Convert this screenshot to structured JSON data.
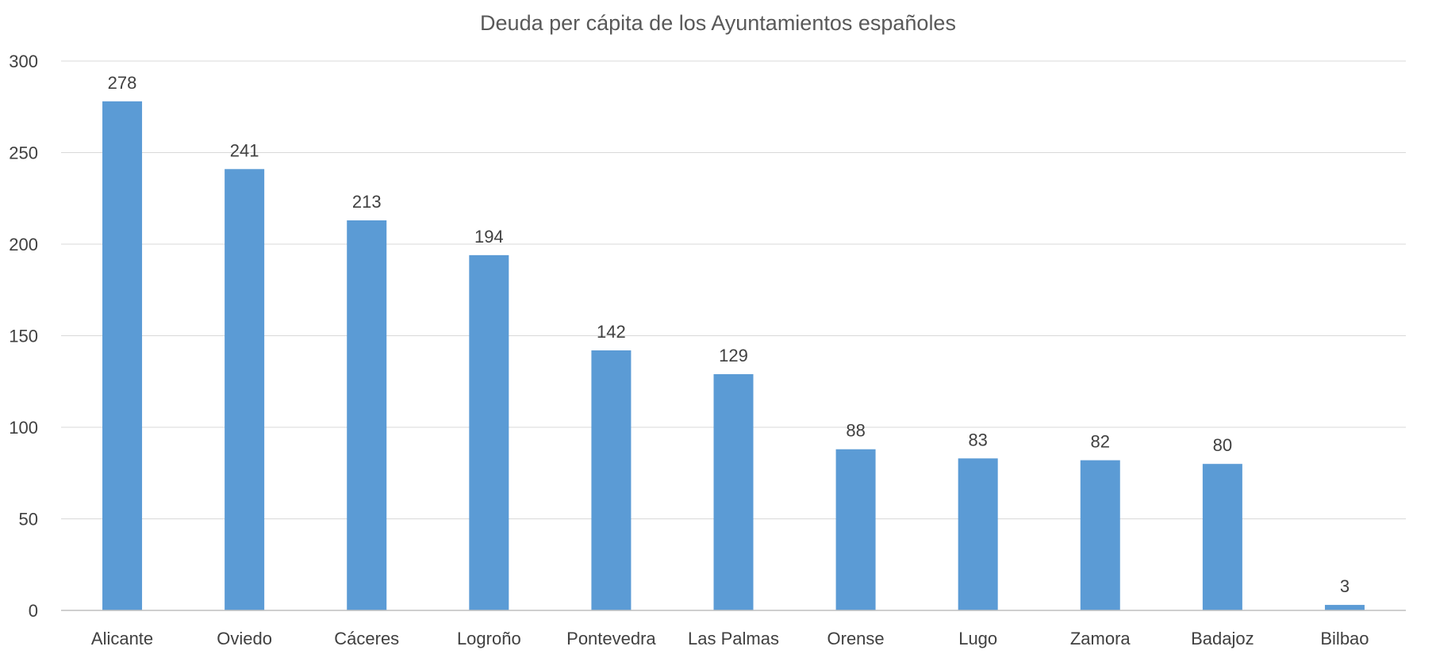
{
  "chart_data": {
    "type": "bar",
    "title": "Deuda per cápita de los Ayuntamientos españoles",
    "xlabel": "",
    "ylabel": "",
    "categories": [
      "Alicante",
      "Oviedo",
      "Cáceres",
      "Logroño",
      "Pontevedra",
      "Las Palmas",
      "Orense",
      "Lugo",
      "Zamora",
      "Badajoz",
      "Bilbao"
    ],
    "values": [
      278,
      241,
      213,
      194,
      142,
      129,
      88,
      83,
      82,
      80,
      3
    ],
    "data_labels": [
      "278",
      "241",
      "213",
      "194",
      "142",
      "129",
      "88",
      "83",
      "82",
      "80",
      "3"
    ],
    "ylim": [
      0,
      300
    ],
    "yticks": [
      0,
      50,
      100,
      150,
      200,
      250,
      300
    ],
    "ytick_labels": [
      "0",
      "50",
      "100",
      "150",
      "200",
      "250",
      "300"
    ],
    "grid": true,
    "legend": "none",
    "bar_color": "#5b9bd5"
  }
}
